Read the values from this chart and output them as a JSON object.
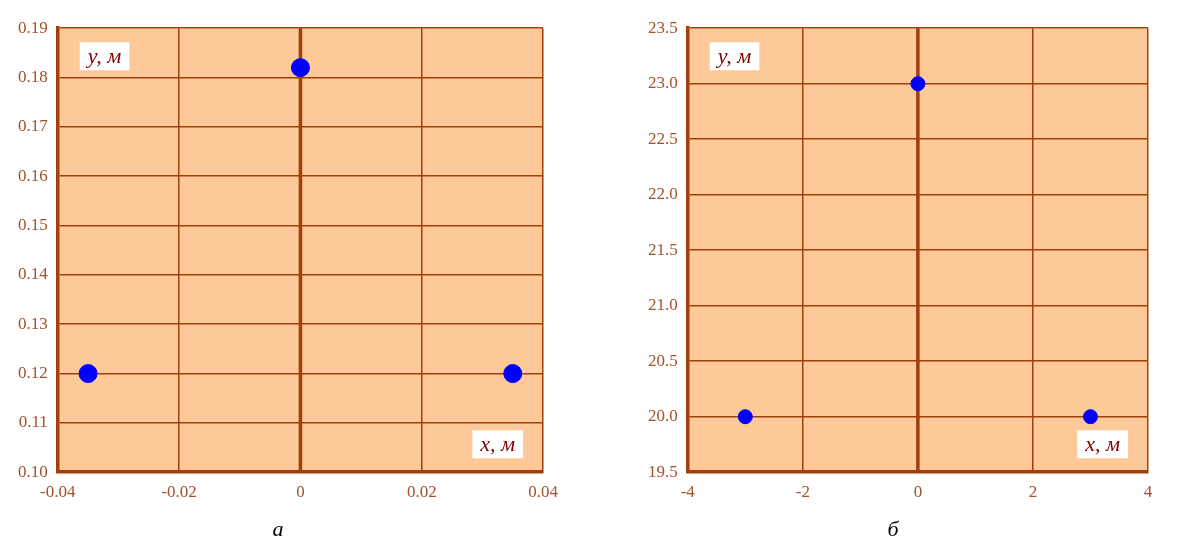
{
  "chart_data": [
    {
      "type": "scatter",
      "title": "а",
      "xlabel": "x, м",
      "ylabel": "y, м",
      "x": [
        -0.035,
        0,
        0.035
      ],
      "series": [
        {
          "color": "#0000ff",
          "values": [
            0.12,
            0.182,
            0.12
          ]
        }
      ],
      "marker": "circle",
      "grid": true,
      "legend": false,
      "ref_lines": [
        {
          "axis": "x",
          "value": 0,
          "color": "#a0410d"
        }
      ],
      "xlim": [
        -0.04,
        0.04
      ],
      "xticks": [
        -0.04,
        -0.02,
        0,
        0.02,
        0.04
      ],
      "ylim": [
        0.1,
        0.19
      ],
      "yticks": [
        {
          "value": 0.1,
          "label": "0.10"
        },
        0.11,
        0.12,
        0.13,
        0.14,
        0.15,
        0.16,
        0.17,
        0.18,
        0.19
      ]
    },
    {
      "type": "scatter",
      "title": "б",
      "xlabel": "x, м",
      "ylabel": "y, м",
      "x": [
        -3,
        0,
        3
      ],
      "series": [
        {
          "color": "#0000ff",
          "values": [
            20,
            23,
            20
          ]
        }
      ],
      "marker": "circle",
      "grid": true,
      "legend": false,
      "ref_lines": [
        {
          "axis": "x",
          "value": 0,
          "color": "#a0410d"
        }
      ],
      "xlim": [
        -4,
        4
      ],
      "xticks": [
        -4,
        -2,
        0,
        2,
        4
      ],
      "ylim": [
        19.5,
        23.5
      ],
      "yticks": [
        19.5,
        {
          "value": 20,
          "label": "20.0"
        },
        20.5,
        {
          "value": 21,
          "label": "21.0"
        },
        21.5,
        {
          "value": 22,
          "label": "22.0"
        },
        22.5,
        {
          "value": 23,
          "label": "23.0"
        },
        23.5
      ]
    }
  ]
}
